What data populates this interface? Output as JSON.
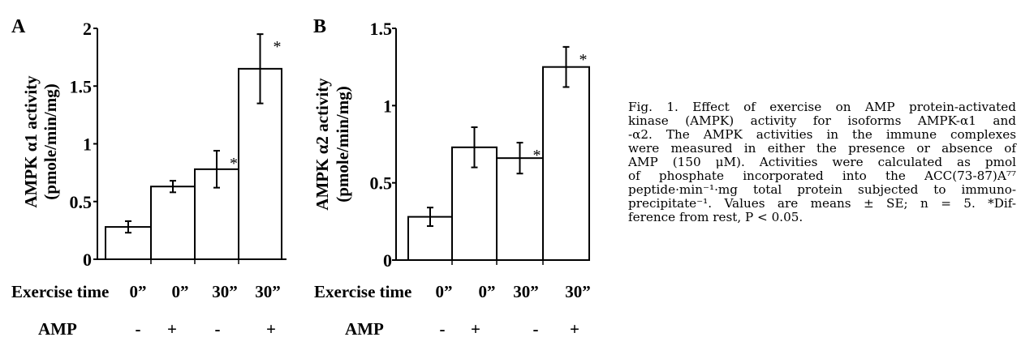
{
  "chart_data": [
    {
      "type": "bar",
      "panel_label": "A",
      "ylabel_line1": "AMPK α1 activity",
      "ylabel_line2": "(pmole/min/mg)",
      "ylim": [
        0,
        2
      ],
      "yticks": [
        0,
        0.5,
        1,
        1.5,
        2
      ],
      "ytick_labels": [
        "0",
        "0.5",
        "1",
        "1.5",
        "2"
      ],
      "values": [
        0.28,
        0.63,
        0.78,
        1.65
      ],
      "errors": [
        0.05,
        0.05,
        0.16,
        0.3
      ],
      "significant": [
        false,
        false,
        true,
        true
      ],
      "sig_marker": "*",
      "row1_label": "Exercise time",
      "exercise_time": [
        "0”",
        "0”",
        "30”",
        "30”"
      ],
      "row2_label": "AMP",
      "amp": [
        "-",
        "+",
        "-",
        "+"
      ],
      "grid": false
    },
    {
      "type": "bar",
      "panel_label": "B",
      "ylabel_line1": "AMPK α2 activity",
      "ylabel_line2": "(pmole/min/mg)",
      "ylim": [
        0,
        1.5
      ],
      "yticks": [
        0,
        0.5,
        1,
        1.5
      ],
      "ytick_labels": [
        "0",
        "0.5",
        "1",
        "1.5"
      ],
      "values": [
        0.28,
        0.73,
        0.66,
        1.25
      ],
      "errors": [
        0.06,
        0.13,
        0.1,
        0.13
      ],
      "significant": [
        false,
        false,
        true,
        true
      ],
      "sig_marker": "*",
      "row1_label": "Exercise time",
      "exercise_time": [
        "0”",
        "0”",
        "30”",
        "30”"
      ],
      "row2_label": "AMP",
      "amp": [
        "-",
        "+",
        "-",
        "+"
      ],
      "grid": false
    }
  ],
  "caption": {
    "lines": [
      "Fig. 1. Effect of exercise on AMP protein-activated",
      "kinase (AMPK) activity for isoforms AMPK-α1 and",
      "-α2. The AMPK activities in the immune complexes",
      "were measured in either the presence or absence of",
      "AMP (150 μM). Activities were calculated as pmol",
      "of phosphate incorporated into the ACC(73-87)A⁷⁷",
      "peptide·min⁻¹·mg total protein subjected to immuno-",
      "precipitate⁻¹. Values are means ± SE; n = 5. *Dif-",
      "ference from rest, P < 0.05."
    ]
  }
}
